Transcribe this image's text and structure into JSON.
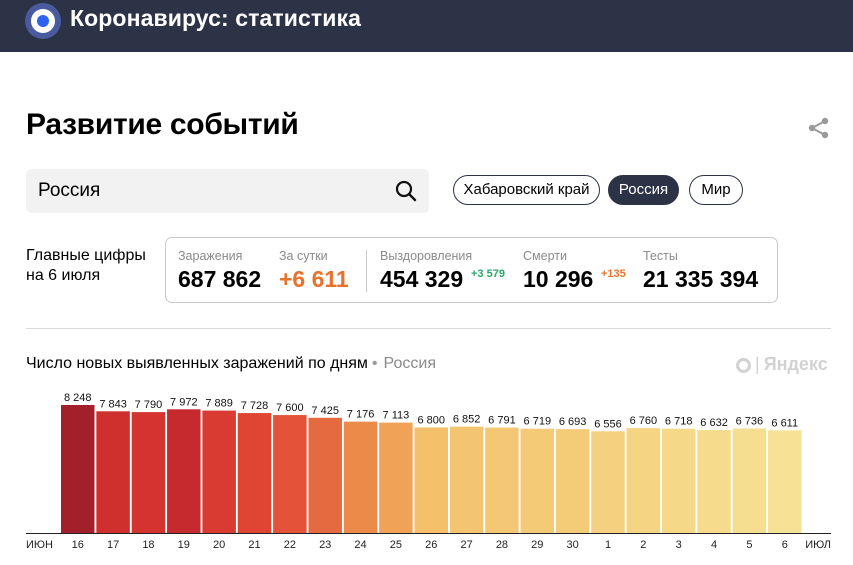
{
  "app": {
    "title": "Коронавирус: статистика"
  },
  "section": {
    "title": "Развитие событий"
  },
  "search": {
    "value": "Россия"
  },
  "regions": [
    {
      "label": "Хабаровский край",
      "active": false
    },
    {
      "label": "Россия",
      "active": true
    },
    {
      "label": "Мир",
      "active": false
    }
  ],
  "main_figures": {
    "label_line1": "Главные цифры",
    "label_line2": "на 6 июля",
    "infections": {
      "label": "Заражения",
      "value": "687 862"
    },
    "per_day": {
      "label": "За сутки",
      "value": "+6 611",
      "color": "#e8722b"
    },
    "recovered": {
      "label": "Выздоровления",
      "value": "454 329",
      "delta": "+3 579",
      "delta_color": "#2ba66b"
    },
    "deaths": {
      "label": "Смерти",
      "value": "10 296",
      "delta": "+135",
      "delta_color": "#e8722b"
    },
    "tests": {
      "label": "Тесты",
      "value": "21 335 394"
    }
  },
  "chart": {
    "title": "Число новых выявленных заражений по дням",
    "separator": "•",
    "region": "Россия",
    "watermark": "Яндекс"
  },
  "chart_data": {
    "type": "bar",
    "categories": [
      "16",
      "17",
      "18",
      "19",
      "20",
      "21",
      "22",
      "23",
      "24",
      "25",
      "26",
      "27",
      "28",
      "29",
      "30",
      "1",
      "2",
      "3",
      "4",
      "5",
      "6"
    ],
    "values": [
      8248,
      7843,
      7790,
      7972,
      7889,
      7728,
      7600,
      7425,
      7176,
      7113,
      6800,
      6852,
      6791,
      6719,
      6693,
      6556,
      6760,
      6718,
      6632,
      6736,
      6611
    ],
    "value_labels": [
      "8 248",
      "7 843",
      "7 790",
      "7 972",
      "7 889",
      "7 728",
      "7 600",
      "7 425",
      "7 176",
      "7 113",
      "6 800",
      "6 852",
      "6 791",
      "6 719",
      "6 693",
      "6 556",
      "6 760",
      "6 718",
      "6 632",
      "6 736",
      "6 611"
    ],
    "weekend": [
      false,
      false,
      false,
      false,
      true,
      true,
      false,
      false,
      false,
      false,
      false,
      true,
      true,
      false,
      false,
      false,
      false,
      false,
      true,
      true,
      false
    ],
    "month_start_label": "ИЮН",
    "month_end_label": "ИЮЛ",
    "colors": [
      "#a31f2a",
      "#cf2f2d",
      "#d5332f",
      "#c62a2e",
      "#d93a31",
      "#e04533",
      "#e5523a",
      "#e66a3f",
      "#ec8a4a",
      "#f0a356",
      "#f4c06a",
      "#f4c570",
      "#f4c774",
      "#f4ca76",
      "#f4cc78",
      "#f5d17f",
      "#f5d584",
      "#f5d888",
      "#f6db8c",
      "#f6de90",
      "#f7e194"
    ],
    "weekend_color": "#e23b2b",
    "ylim": [
      0,
      8248
    ],
    "grid": false
  }
}
